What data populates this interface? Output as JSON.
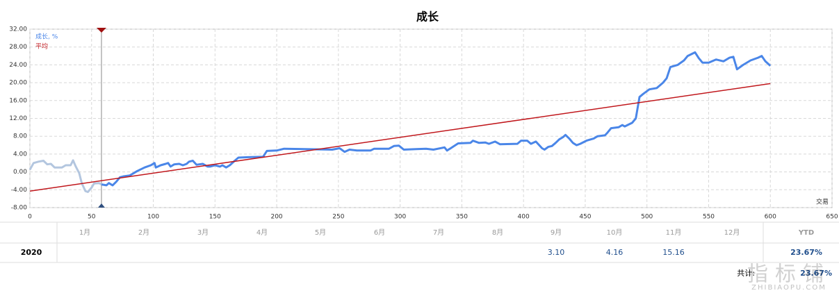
{
  "chart_data": {
    "type": "line",
    "title": "成长",
    "x_label": "交易",
    "xlim": [
      0,
      650
    ],
    "xticks": [
      0,
      50,
      100,
      150,
      200,
      250,
      300,
      350,
      400,
      450,
      500,
      550,
      600,
      650
    ],
    "ylim": [
      -8,
      32
    ],
    "yticks": [
      {
        "value": -8,
        "label": "-8.00"
      },
      {
        "value": -4,
        "label": "-4.00"
      },
      {
        "value": 0,
        "label": "0.00"
      },
      {
        "value": 4,
        "label": "4.00"
      },
      {
        "value": 8,
        "label": "8.00"
      },
      {
        "value": 12,
        "label": "12.00"
      },
      {
        "value": 16,
        "label": "16.00"
      },
      {
        "value": 20,
        "label": "20.00"
      },
      {
        "value": 24,
        "label": "24.00"
      },
      {
        "value": 28,
        "label": "28.00"
      },
      {
        "value": 32,
        "label": "32.00"
      }
    ],
    "grid": true,
    "legend": "top-left",
    "marker_x": 58,
    "series": [
      {
        "name": "成长, %",
        "color": "#4a86e8",
        "faded_color": "#b3c6df",
        "x": [
          0,
          3,
          7,
          11,
          14,
          17,
          20,
          26,
          29,
          33,
          35,
          37,
          40,
          42,
          45,
          47,
          50,
          52,
          56,
          58,
          62,
          64,
          67,
          70,
          73,
          76,
          81,
          87,
          93,
          98,
          101,
          102,
          106,
          110,
          112,
          114,
          117,
          121,
          124,
          127,
          129,
          132,
          135,
          140,
          144,
          146,
          150,
          154,
          156,
          159,
          162,
          166,
          169,
          177,
          189,
          192,
          200,
          206,
          223,
          245,
          251,
          255,
          259,
          265,
          276,
          279,
          291,
          295,
          299,
          303,
          313,
          321,
          327,
          336,
          338,
          341,
          347,
          357,
          359,
          364,
          369,
          372,
          377,
          381,
          395,
          398,
          403,
          406,
          410,
          415,
          417,
          420,
          423,
          426,
          429,
          432,
          434,
          437,
          440,
          443,
          446,
          451,
          457,
          460,
          466,
          468,
          471,
          477,
          480,
          482,
          488,
          491,
          494,
          497,
          502,
          508,
          513,
          516,
          519,
          525,
          530,
          533,
          539,
          542,
          545,
          550,
          556,
          562,
          567,
          570,
          573,
          578,
          584,
          590,
          593,
          596,
          600
        ],
        "values": [
          0.5,
          2.0,
          2.3,
          2.5,
          1.7,
          1.8,
          1.0,
          1.0,
          1.5,
          1.5,
          2.6,
          1.3,
          -0.3,
          -2.5,
          -4.3,
          -4.5,
          -3.5,
          -2.6,
          -2.5,
          -2.8,
          -3.0,
          -2.5,
          -3.0,
          -2.2,
          -1.2,
          -1.0,
          -0.8,
          0.2,
          1.0,
          1.5,
          2.0,
          1.0,
          1.5,
          1.8,
          2.0,
          1.2,
          1.7,
          1.8,
          1.5,
          1.8,
          2.3,
          2.5,
          1.6,
          1.8,
          1.2,
          1.2,
          1.5,
          1.2,
          1.5,
          1.0,
          1.5,
          2.5,
          3.2,
          3.3,
          3.4,
          4.7,
          4.8,
          5.2,
          5.1,
          5.0,
          5.3,
          4.5,
          5.0,
          4.8,
          4.8,
          5.2,
          5.2,
          5.8,
          5.9,
          5.0,
          5.1,
          5.2,
          5.0,
          5.5,
          4.8,
          5.3,
          6.4,
          6.5,
          7.0,
          6.5,
          6.6,
          6.3,
          6.8,
          6.2,
          6.3,
          7.0,
          7.0,
          6.3,
          6.8,
          5.3,
          5.0,
          5.6,
          5.8,
          6.5,
          7.3,
          7.8,
          8.3,
          7.5,
          6.5,
          6.0,
          6.3,
          7.0,
          7.5,
          8.0,
          8.2,
          8.8,
          9.8,
          10.0,
          10.5,
          10.2,
          11.0,
          12.0,
          16.8,
          17.5,
          18.5,
          18.8,
          20.0,
          21.0,
          23.5,
          24.0,
          25.0,
          26.0,
          26.8,
          25.5,
          24.5,
          24.5,
          25.2,
          24.8,
          25.6,
          25.8,
          23.0,
          24.0,
          25.0,
          25.6,
          26.0,
          24.8,
          23.8
        ]
      },
      {
        "name": "平均",
        "color": "#c0161b",
        "x": [
          0,
          600
        ],
        "values": [
          -4.3,
          19.8
        ]
      }
    ]
  },
  "table": {
    "header": [
      "1月",
      "2月",
      "3月",
      "4月",
      "5月",
      "6月",
      "7月",
      "8月",
      "9月",
      "10月",
      "11月",
      "12月",
      "YTD"
    ],
    "rows": [
      {
        "label": "2020",
        "cells": [
          null,
          null,
          null,
          null,
          null,
          null,
          null,
          null,
          "3.10",
          "4.16",
          "15.16",
          null,
          "23.67%"
        ]
      }
    ]
  },
  "footer": {
    "total_label": "共计:",
    "total_value": "23.67%"
  },
  "watermark": {
    "text": "指标铺",
    "url": "ZHIBIAOPU.COM"
  }
}
